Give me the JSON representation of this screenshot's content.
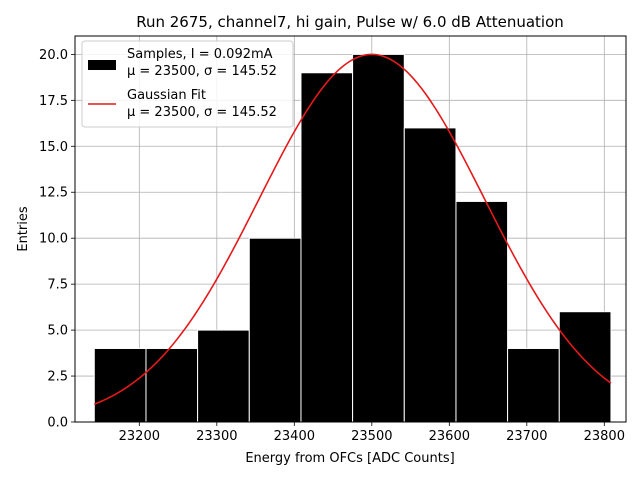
{
  "chart_data": {
    "type": "bar",
    "title": "Run 2675, channel7, hi gain, Pulse w/ 6.0 dB Attenuation",
    "xlabel": "Energy from OFCs [ADC Counts]",
    "ylabel": "Entries",
    "xlim": [
      23117,
      23828
    ],
    "ylim": [
      0,
      21
    ],
    "xticks": [
      23200,
      23300,
      23400,
      23500,
      23600,
      23700,
      23800
    ],
    "yticks": [
      0.0,
      2.5,
      5.0,
      7.5,
      10.0,
      12.5,
      15.0,
      17.5,
      20.0
    ],
    "ytick_labels": [
      "0.0",
      "2.5",
      "5.0",
      "7.5",
      "10.0",
      "12.5",
      "15.0",
      "17.5",
      "20.0"
    ],
    "grid": true,
    "legend_position": "top-left",
    "histogram": {
      "name": "Samples, I = 0.092mA",
      "stats": "μ = 23500, σ = 145.52",
      "bin_edges": [
        23141.9,
        23208.6,
        23275.2,
        23341.9,
        23408.6,
        23475.2,
        23541.9,
        23608.6,
        23675.2,
        23741.9,
        23808.6
      ],
      "counts": [
        4,
        4,
        5,
        10,
        19,
        20,
        16,
        12,
        4,
        6
      ]
    },
    "fit": {
      "name": "Gaussian Fit",
      "stats": "μ = 23500, σ = 145.52",
      "mu": 23500,
      "sigma": 145.52,
      "amplitude": 20,
      "x_range": [
        23141.9,
        23808.6
      ]
    },
    "colors": {
      "bars": "#000000",
      "bar_edge": "#ffffff",
      "fit": "#e41a1c",
      "grid": "#b0b0b0"
    }
  }
}
